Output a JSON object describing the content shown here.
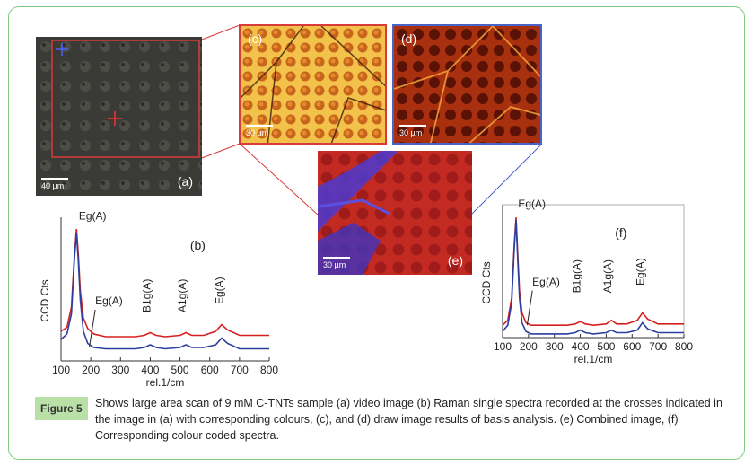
{
  "panels": {
    "a": {
      "label": "(a)",
      "scale": "40 µm"
    },
    "c": {
      "label": "(c)",
      "scale": "30 µm"
    },
    "d": {
      "label": "(d)",
      "scale": "30 µm"
    },
    "e": {
      "label": "(e)",
      "scale": "30 µm"
    }
  },
  "colors": {
    "red_series": "#d62020",
    "blue_series": "#2a3fa0",
    "frame_green": "#7fc97f",
    "tag_bg": "#b9e0a6",
    "panel_c_border": "#d93a3a",
    "panel_d_border": "#4a63c8"
  },
  "caption": {
    "tag": "Figure 5",
    "text": "Shows large area scan of 9 mM C-TNTs sample (a) video image (b) Raman single spectra recorded at the crosses indicated in the image in (a) with corresponding colours, (c), and (d) draw image results of basis analysis. (e) Combined image, (f) Corresponding colour coded spectra."
  },
  "chart_data": [
    {
      "type": "line",
      "panel_label": "(b)",
      "xlabel": "rel.1/cm",
      "ylabel": "CCD Cts",
      "xlim": [
        100,
        800
      ],
      "x_ticks": [
        "100",
        "200",
        "300",
        "400",
        "500",
        "600",
        "700",
        "800"
      ],
      "annotations": [
        "Eg(A)",
        "Eg(A)",
        "B1g(A)",
        "A1g(A)",
        "Eg(A)"
      ],
      "series": [
        {
          "color": "red",
          "x": [
            100,
            120,
            135,
            145,
            152,
            158,
            165,
            175,
            190,
            210,
            250,
            300,
            350,
            380,
            400,
            420,
            450,
            500,
            520,
            540,
            580,
            620,
            640,
            660,
            700,
            750,
            800
          ],
          "y": [
            0.22,
            0.25,
            0.4,
            0.78,
            0.98,
            0.8,
            0.52,
            0.32,
            0.24,
            0.2,
            0.18,
            0.18,
            0.18,
            0.19,
            0.21,
            0.19,
            0.18,
            0.19,
            0.21,
            0.19,
            0.19,
            0.22,
            0.27,
            0.23,
            0.19,
            0.19,
            0.19
          ]
        },
        {
          "color": "blue",
          "x": [
            100,
            120,
            135,
            145,
            152,
            158,
            165,
            175,
            190,
            210,
            250,
            300,
            350,
            380,
            400,
            420,
            450,
            500,
            520,
            540,
            580,
            620,
            640,
            660,
            700,
            750,
            800
          ],
          "y": [
            0.16,
            0.2,
            0.35,
            0.75,
            0.95,
            0.75,
            0.45,
            0.22,
            0.13,
            0.1,
            0.09,
            0.09,
            0.09,
            0.1,
            0.12,
            0.1,
            0.09,
            0.1,
            0.12,
            0.1,
            0.1,
            0.12,
            0.17,
            0.13,
            0.09,
            0.09,
            0.09
          ]
        }
      ]
    },
    {
      "type": "line",
      "panel_label": "(f)",
      "xlabel": "rel.1/cm",
      "ylabel": "CCD Cts",
      "xlim": [
        100,
        800
      ],
      "x_ticks": [
        "100",
        "200",
        "300",
        "400",
        "500",
        "600",
        "700",
        "800"
      ],
      "annotations": [
        "Eg(A)",
        "Eg(A)",
        "B1g(A)",
        "A1g(A)",
        "Eg(A)"
      ],
      "series": [
        {
          "color": "red",
          "x": [
            100,
            120,
            135,
            145,
            152,
            158,
            165,
            175,
            190,
            210,
            250,
            300,
            350,
            380,
            400,
            420,
            450,
            500,
            520,
            540,
            580,
            620,
            640,
            660,
            700,
            750,
            800
          ],
          "y": [
            0.1,
            0.14,
            0.32,
            0.75,
            0.97,
            0.7,
            0.38,
            0.2,
            0.12,
            0.1,
            0.1,
            0.1,
            0.1,
            0.11,
            0.13,
            0.11,
            0.1,
            0.11,
            0.14,
            0.11,
            0.11,
            0.14,
            0.2,
            0.15,
            0.11,
            0.11,
            0.11
          ]
        },
        {
          "color": "blue",
          "x": [
            100,
            120,
            135,
            145,
            152,
            158,
            165,
            175,
            190,
            210,
            250,
            300,
            350,
            380,
            400,
            420,
            450,
            500,
            520,
            540,
            580,
            620,
            640,
            660,
            700,
            750,
            800
          ],
          "y": [
            0.05,
            0.1,
            0.28,
            0.72,
            0.95,
            0.66,
            0.32,
            0.12,
            0.05,
            0.03,
            0.03,
            0.03,
            0.03,
            0.04,
            0.06,
            0.04,
            0.03,
            0.04,
            0.06,
            0.04,
            0.04,
            0.06,
            0.12,
            0.07,
            0.04,
            0.04,
            0.04
          ]
        }
      ]
    }
  ]
}
